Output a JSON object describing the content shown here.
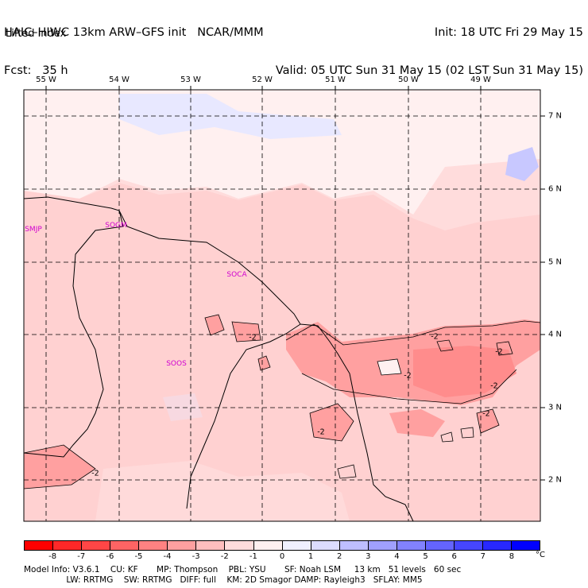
{
  "header": {
    "left_line1": "HAIC–HIWC 13km ARW–GFS init   NCAR/MMM",
    "left_line2": "Fcst:   35 h",
    "right_line1": "Init: 18 UTC Fri 29 May 15",
    "right_line2": "Valid: 05 UTC Sun 31 May 15 (02 LST Sun 31 May 15)",
    "field": "Lifted index"
  },
  "map": {
    "lon_labels": [
      "55 W",
      "54 W",
      "53 W",
      "52 W",
      "51 W",
      "50 W",
      "49 W"
    ],
    "lat_labels": [
      "7 N",
      "6 N",
      "5 N",
      "4 N",
      "3 N",
      "2 N"
    ],
    "stations": [
      "SMJP",
      "SOGM",
      "SOCA",
      "SOOS"
    ],
    "contour_labels": [
      "-2",
      "-2",
      "-2",
      "-2",
      "-2",
      "-2",
      "-2",
      "-2"
    ]
  },
  "colorbar": {
    "ticks": [
      "-8",
      "-7",
      "-6",
      "-5",
      "-4",
      "-3",
      "-2",
      "-1",
      "0",
      "1",
      "2",
      "3",
      "4",
      "5",
      "6",
      "7",
      "8"
    ],
    "unit": "°C",
    "colors": [
      "#ff0000",
      "#ff2828",
      "#ff4646",
      "#ff6464",
      "#ff8282",
      "#ffa0a0",
      "#ffbebe",
      "#ffdcdc",
      "#fff0f0",
      "#f0f0ff",
      "#dcdcff",
      "#bebeff",
      "#a0a0ff",
      "#8282ff",
      "#6464ff",
      "#4646ff",
      "#2828ff",
      "#0000ff"
    ]
  },
  "footer": {
    "line1": "Model Info: V3.6.1    CU: KF       MP: Thompson    PBL: YSU       SF: Noah LSM     13 km   51 levels   60 sec",
    "line2": "                LW: RRTMG    SW: RRTMG   DIFF: full    KM: 2D Smagor DAMP: Rayleigh3   SFLAY: MM5"
  }
}
